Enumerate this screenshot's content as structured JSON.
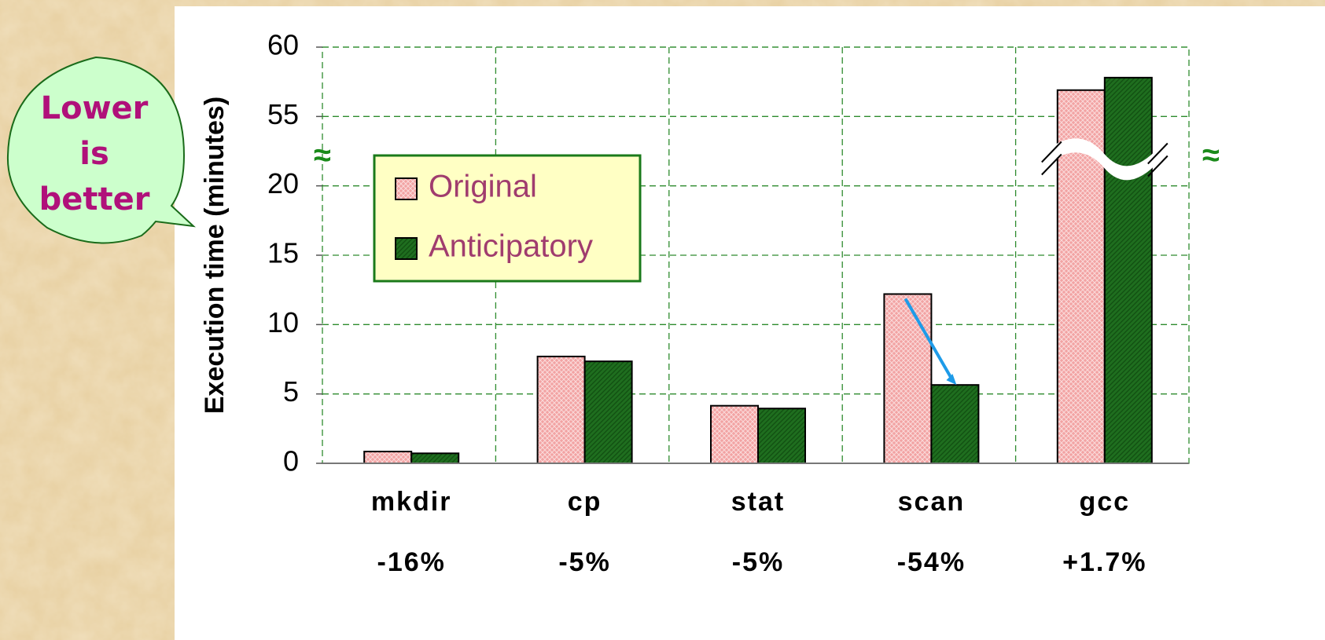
{
  "chart_data": {
    "type": "bar",
    "y_label": "Execution time (minutes)",
    "categories": [
      "mkdir",
      "cp",
      "stat",
      "scan",
      "gcc"
    ],
    "change_labels": [
      "-16%",
      "-5%",
      "-5%",
      "-54%",
      "+1.7%"
    ],
    "series": [
      {
        "name": "Original",
        "color": "#f2a3a3",
        "values": [
          0.85,
          7.7,
          4.15,
          12.2,
          56.9
        ]
      },
      {
        "name": "Anticipatory",
        "color": "#1f6e1f",
        "values": [
          0.72,
          7.35,
          3.95,
          5.65,
          57.8
        ]
      }
    ],
    "ylim": [
      0,
      60
    ],
    "yticks": [
      0,
      5,
      10,
      15,
      20,
      55,
      60
    ],
    "axis_break": true,
    "grid": true,
    "callout": [
      "Lower",
      "is",
      "better"
    ]
  }
}
